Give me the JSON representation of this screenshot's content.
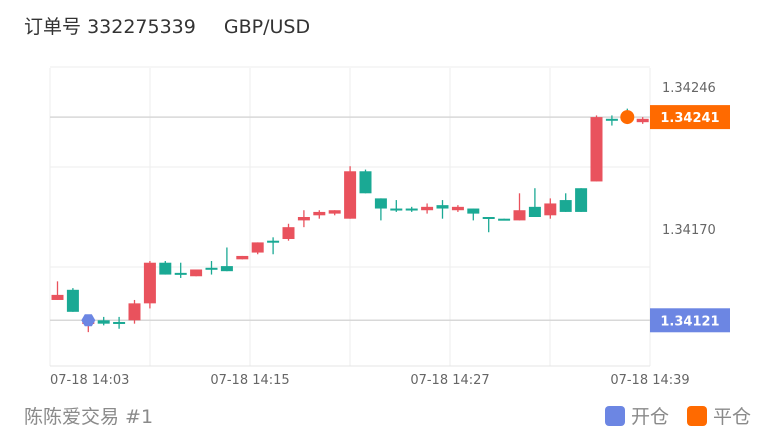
{
  "header": {
    "order_label": "订单号",
    "order_number": "332275339",
    "symbol": "GBP/USD"
  },
  "footer": {
    "account": "陈陈爱交易 #1",
    "legend": [
      {
        "label": "开仓",
        "color": "#6c86e3"
      },
      {
        "label": "平仓",
        "color": "#ff6a00"
      }
    ]
  },
  "colors": {
    "up": "#1aa994",
    "down": "#e9525d",
    "open_marker": "#6c86e3",
    "close_marker": "#ff6a00"
  },
  "chart_data": {
    "type": "candlestick",
    "x_tick_labels": [
      "07-18 14:03",
      "07-18 14:15",
      "07-18 14:27",
      "07-18 14:39"
    ],
    "y_tick_labels": [
      "1.34246",
      "1.34170"
    ],
    "price_tags": [
      {
        "role": "close",
        "value": "1.34241"
      },
      {
        "role": "open",
        "value": "1.34121"
      }
    ],
    "ylim": [
      1.34094,
      1.3427
    ],
    "markers": [
      {
        "role": "open",
        "candle": 2,
        "price": 1.34121
      },
      {
        "role": "close",
        "candle": 37,
        "price": 1.34241
      }
    ],
    "candles": [
      {
        "o": 1.34136,
        "h": 1.34144,
        "l": 1.34133,
        "c": 1.34133
      },
      {
        "o": 1.34126,
        "h": 1.3414,
        "l": 1.34126,
        "c": 1.34139
      },
      {
        "o": 1.3412,
        "h": 1.34124,
        "l": 1.34114,
        "c": 1.34119
      },
      {
        "o": 1.34119,
        "h": 1.34123,
        "l": 1.34118,
        "c": 1.34121
      },
      {
        "o": 1.34119,
        "h": 1.34123,
        "l": 1.34116,
        "c": 1.3412
      },
      {
        "o": 1.34131,
        "h": 1.34133,
        "l": 1.34119,
        "c": 1.34121
      },
      {
        "o": 1.34155,
        "h": 1.34156,
        "l": 1.34128,
        "c": 1.34131
      },
      {
        "o": 1.34148,
        "h": 1.34156,
        "l": 1.34148,
        "c": 1.34155
      },
      {
        "o": 1.34148,
        "h": 1.34155,
        "l": 1.34146,
        "c": 1.34149
      },
      {
        "o": 1.34151,
        "h": 1.34151,
        "l": 1.34147,
        "c": 1.34147
      },
      {
        "o": 1.34152,
        "h": 1.34156,
        "l": 1.34148,
        "c": 1.34152
      },
      {
        "o": 1.3415,
        "h": 1.34164,
        "l": 1.3415,
        "c": 1.34153
      },
      {
        "o": 1.34159,
        "h": 1.34159,
        "l": 1.34157,
        "c": 1.34157
      },
      {
        "o": 1.34167,
        "h": 1.34167,
        "l": 1.3416,
        "c": 1.34161
      },
      {
        "o": 1.34167,
        "h": 1.3417,
        "l": 1.3416,
        "c": 1.34168
      },
      {
        "o": 1.34176,
        "h": 1.34178,
        "l": 1.34168,
        "c": 1.34169
      },
      {
        "o": 1.34182,
        "h": 1.34186,
        "l": 1.34176,
        "c": 1.3418
      },
      {
        "o": 1.34185,
        "h": 1.34186,
        "l": 1.34181,
        "c": 1.34183
      },
      {
        "o": 1.34186,
        "h": 1.34186,
        "l": 1.34183,
        "c": 1.34184
      },
      {
        "o": 1.34209,
        "h": 1.34212,
        "l": 1.34181,
        "c": 1.34181
      },
      {
        "o": 1.34196,
        "h": 1.3421,
        "l": 1.34196,
        "c": 1.34209
      },
      {
        "o": 1.34187,
        "h": 1.34193,
        "l": 1.3418,
        "c": 1.34193
      },
      {
        "o": 1.34186,
        "h": 1.34192,
        "l": 1.34185,
        "c": 1.34187
      },
      {
        "o": 1.34186,
        "h": 1.34188,
        "l": 1.34185,
        "c": 1.34187
      },
      {
        "o": 1.34188,
        "h": 1.3419,
        "l": 1.34184,
        "c": 1.34186
      },
      {
        "o": 1.34187,
        "h": 1.34192,
        "l": 1.34181,
        "c": 1.34189
      },
      {
        "o": 1.34188,
        "h": 1.34189,
        "l": 1.34185,
        "c": 1.34186
      },
      {
        "o": 1.34184,
        "h": 1.34187,
        "l": 1.3418,
        "c": 1.34187
      },
      {
        "o": 1.34181,
        "h": 1.34182,
        "l": 1.34173,
        "c": 1.34182
      },
      {
        "o": 1.34181,
        "h": 1.34181,
        "l": 1.3418,
        "c": 1.34181
      },
      {
        "o": 1.34186,
        "h": 1.34196,
        "l": 1.3418,
        "c": 1.3418
      },
      {
        "o": 1.34182,
        "h": 1.34199,
        "l": 1.34182,
        "c": 1.34188
      },
      {
        "o": 1.3419,
        "h": 1.34193,
        "l": 1.34181,
        "c": 1.34183
      },
      {
        "o": 1.34185,
        "h": 1.34196,
        "l": 1.34185,
        "c": 1.34192
      },
      {
        "o": 1.34185,
        "h": 1.34199,
        "l": 1.34185,
        "c": 1.34199
      },
      {
        "o": 1.34241,
        "h": 1.34242,
        "l": 1.34203,
        "c": 1.34203
      },
      {
        "o": 1.34239,
        "h": 1.34242,
        "l": 1.34236,
        "c": 1.3424
      },
      {
        "o": 1.34239,
        "h": 1.34246,
        "l": 1.34239,
        "c": 1.34241
      },
      {
        "o": 1.3424,
        "h": 1.34241,
        "l": 1.34237,
        "c": 1.34238
      }
    ]
  }
}
